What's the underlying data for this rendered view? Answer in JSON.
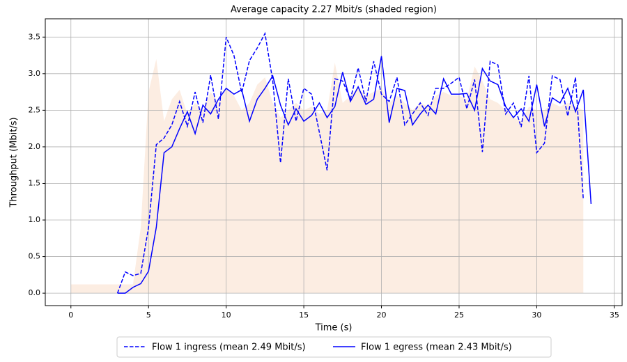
{
  "chart_data": {
    "type": "line",
    "title": "Average capacity 2.27 Mbit/s (shaded region)",
    "x_label": "Time (s)",
    "y_label": "Throughput (Mbit/s)",
    "xlim": [
      -1.65,
      35.5
    ],
    "ylim": [
      -0.17,
      3.75
    ],
    "xticks": [
      0,
      5,
      10,
      15,
      20,
      25,
      30,
      35
    ],
    "yticks": [
      {
        "value": 0,
        "label": "0.0"
      },
      {
        "value": 0.5,
        "label": "0.5"
      },
      {
        "value": 1,
        "label": "1.0"
      },
      {
        "value": 1.5,
        "label": "1.5"
      },
      {
        "value": 2,
        "label": "2.0"
      },
      {
        "value": 2.5,
        "label": "2.5"
      },
      {
        "value": 3,
        "label": "3.0"
      },
      {
        "value": 3.5,
        "label": "3.5"
      }
    ],
    "grid": true,
    "legend": "lower center",
    "capacity": {
      "color": "#fcede2",
      "x": [
        0,
        0.5,
        1,
        1.5,
        2,
        2.5,
        3,
        3.5,
        4,
        4.5,
        5,
        5.5,
        6,
        6.5,
        7,
        7.5,
        8,
        8.5,
        9,
        9.5,
        10,
        10.5,
        11,
        11.5,
        12,
        12.5,
        13,
        13.5,
        14,
        14.5,
        15,
        15.5,
        16,
        16.5,
        17,
        17.5,
        18,
        18.5,
        19,
        19.5,
        20,
        20.5,
        21,
        21.5,
        22,
        22.5,
        23,
        23.5,
        24,
        24.5,
        25,
        25.5,
        26,
        26.5,
        27,
        27.5,
        28,
        28.5,
        29,
        29.5,
        30,
        30.5,
        31,
        31.5,
        32,
        32.5,
        33,
        33
      ],
      "values": [
        0.12,
        0.12,
        0.12,
        0.12,
        0.12,
        0.12,
        0.12,
        0.12,
        0.12,
        0.9,
        2.75,
        3.2,
        2.35,
        2.65,
        2.78,
        2.45,
        2.6,
        2.5,
        2.75,
        2.6,
        2.8,
        2.7,
        2.5,
        2.6,
        2.85,
        2.95,
        2.6,
        2.4,
        2.5,
        2.6,
        2.5,
        2.55,
        2.45,
        2.5,
        3.15,
        2.6,
        2.7,
        2.8,
        2.7,
        2.75,
        2.8,
        2.6,
        2.7,
        2.6,
        2.5,
        2.6,
        2.55,
        2.7,
        2.75,
        2.7,
        2.7,
        2.65,
        3.1,
        2.9,
        2.65,
        2.6,
        2.5,
        2.4,
        2.35,
        2.55,
        2.5,
        2.5,
        2.6,
        2.55,
        2.6,
        2.55,
        2.5,
        0
      ]
    },
    "series": [
      {
        "name": "Flow 1 ingress (mean 2.49 Mbit/s)",
        "color": "#0000ff",
        "dash": true,
        "x": [
          3,
          3.5,
          4,
          4.5,
          5,
          5.5,
          6,
          6.5,
          7,
          7.5,
          8,
          8.5,
          9,
          9.5,
          10,
          10.5,
          11,
          11.5,
          12,
          12.5,
          13,
          13.5,
          14,
          14.5,
          15,
          15.5,
          16,
          16.5,
          17,
          17.5,
          18,
          18.5,
          19,
          19.5,
          20,
          20.5,
          21,
          21.5,
          22,
          22.5,
          23,
          23.5,
          24,
          24.5,
          25,
          25.5,
          26,
          26.5,
          27,
          27.5,
          28,
          28.5,
          29,
          29.5,
          30,
          30.5,
          31,
          31.5,
          32,
          32.5,
          33
        ],
        "values": [
          0,
          0.29,
          0.24,
          0.27,
          0.9,
          2.03,
          2.12,
          2.3,
          2.62,
          2.28,
          2.75,
          2.33,
          2.98,
          2.38,
          3.5,
          3.25,
          2.74,
          3.18,
          3.35,
          3.55,
          2.9,
          1.78,
          2.93,
          2.35,
          2.8,
          2.72,
          2.2,
          1.68,
          2.93,
          2.9,
          2.65,
          3.08,
          2.62,
          3.17,
          2.72,
          2.62,
          2.95,
          2.3,
          2.45,
          2.6,
          2.43,
          2.8,
          2.8,
          2.87,
          2.95,
          2.52,
          2.92,
          1.93,
          3.17,
          3.12,
          2.45,
          2.6,
          2.27,
          2.97,
          1.92,
          2.05,
          2.97,
          2.92,
          2.42,
          2.95,
          1.28
        ]
      },
      {
        "name": "Flow 1 egress (mean 2.43 Mbit/s)",
        "color": "#0000ff",
        "dash": false,
        "x": [
          3,
          3.5,
          4,
          4.5,
          5,
          5.5,
          6,
          6.5,
          7,
          7.5,
          8,
          8.5,
          9,
          9.5,
          10,
          10.5,
          11,
          11.5,
          12,
          12.5,
          13,
          13.5,
          14,
          14.5,
          15,
          15.5,
          16,
          16.5,
          17,
          17.5,
          18,
          18.5,
          19,
          19.5,
          20,
          20.5,
          21,
          21.5,
          22,
          22.5,
          23,
          23.5,
          24,
          24.5,
          25,
          25.5,
          26,
          26.5,
          27,
          27.5,
          28,
          28.5,
          29,
          29.5,
          30,
          30.5,
          31,
          31.5,
          32,
          32.5,
          33,
          33.5
        ],
        "values": [
          0,
          0,
          0.08,
          0.13,
          0.3,
          0.9,
          1.92,
          2,
          2.25,
          2.48,
          2.18,
          2.57,
          2.45,
          2.65,
          2.8,
          2.72,
          2.78,
          2.35,
          2.65,
          2.8,
          2.97,
          2.57,
          2.3,
          2.52,
          2.35,
          2.43,
          2.6,
          2.4,
          2.55,
          3.02,
          2.62,
          2.82,
          2.58,
          2.65,
          3.24,
          2.33,
          2.8,
          2.77,
          2.3,
          2.45,
          2.57,
          2.45,
          2.93,
          2.72,
          2.72,
          2.73,
          2.5,
          3.07,
          2.9,
          2.85,
          2.55,
          2.4,
          2.52,
          2.35,
          2.85,
          2.28,
          2.67,
          2.6,
          2.8,
          2.48,
          2.78,
          1.22
        ]
      }
    ]
  }
}
